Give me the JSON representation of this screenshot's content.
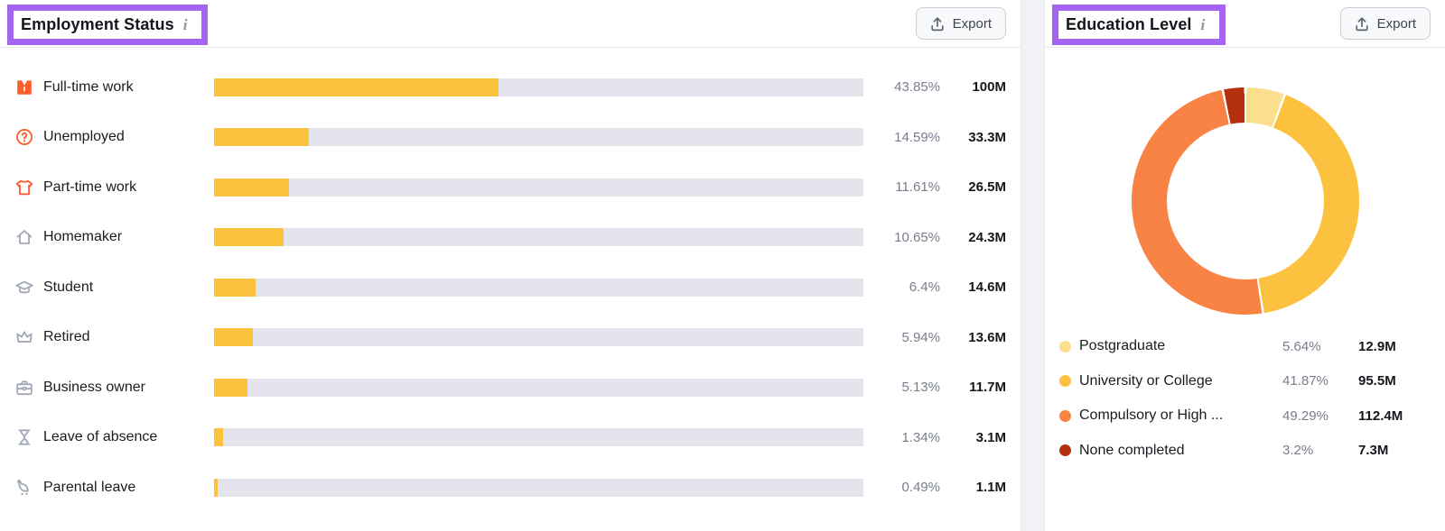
{
  "panels": {
    "employment": {
      "title": "Employment Status",
      "info_icon": "i",
      "export_label": "Export"
    },
    "education": {
      "title": "Education Level",
      "info_icon": "i",
      "export_label": "Export"
    }
  },
  "colors": {
    "bar_fill": "#fcc23d",
    "bar_track": "#e4e4ed",
    "icon_orange": "#ff5c2b",
    "icon_gray": "#a2a9b8",
    "annotation_purple": "#a763f1"
  },
  "chart_data": [
    {
      "type": "bar",
      "title": "Employment Status",
      "orientation": "horizontal",
      "xlim": [
        0,
        100
      ],
      "grid": false,
      "categories": [
        "Full-time work",
        "Unemployed",
        "Part-time work",
        "Homemaker",
        "Student",
        "Retired",
        "Business owner",
        "Leave of absence",
        "Parental leave"
      ],
      "values": [
        43.85,
        14.59,
        11.61,
        10.65,
        6.4,
        5.94,
        5.13,
        1.34,
        0.49
      ],
      "value_labels": [
        "43.85%",
        "14.59%",
        "11.61%",
        "10.65%",
        "6.4%",
        "5.94%",
        "5.13%",
        "1.34%",
        "0.49%"
      ],
      "audience_sizes": [
        "100M",
        "33.3M",
        "26.5M",
        "24.3M",
        "14.6M",
        "13.6M",
        "11.7M",
        "3.1M",
        "1.1M"
      ],
      "icons": [
        "suit-icon",
        "question-circle-icon",
        "tshirt-icon",
        "house-icon",
        "graduation-cap-icon",
        "crown-icon",
        "briefcase-icon",
        "hourglass-icon",
        "stroller-icon"
      ],
      "icon_colors": [
        "orange",
        "orange",
        "orange",
        "gray",
        "gray",
        "gray",
        "gray",
        "gray",
        "gray"
      ]
    },
    {
      "type": "donut",
      "title": "Education Level",
      "legend_position": "bottom",
      "start_angle_deg": 0,
      "categories": [
        "Postgraduate",
        "University or College",
        "Compulsory or High ...",
        "None completed"
      ],
      "values": [
        5.64,
        41.87,
        49.29,
        3.2
      ],
      "value_labels": [
        "5.64%",
        "41.87%",
        "49.29%",
        "3.2%"
      ],
      "audience_sizes": [
        "12.9M",
        "95.5M",
        "112.4M",
        "7.3M"
      ],
      "colors": [
        "#fbdf8f",
        "#fcc23f",
        "#f98245",
        "#b5300f"
      ]
    }
  ]
}
